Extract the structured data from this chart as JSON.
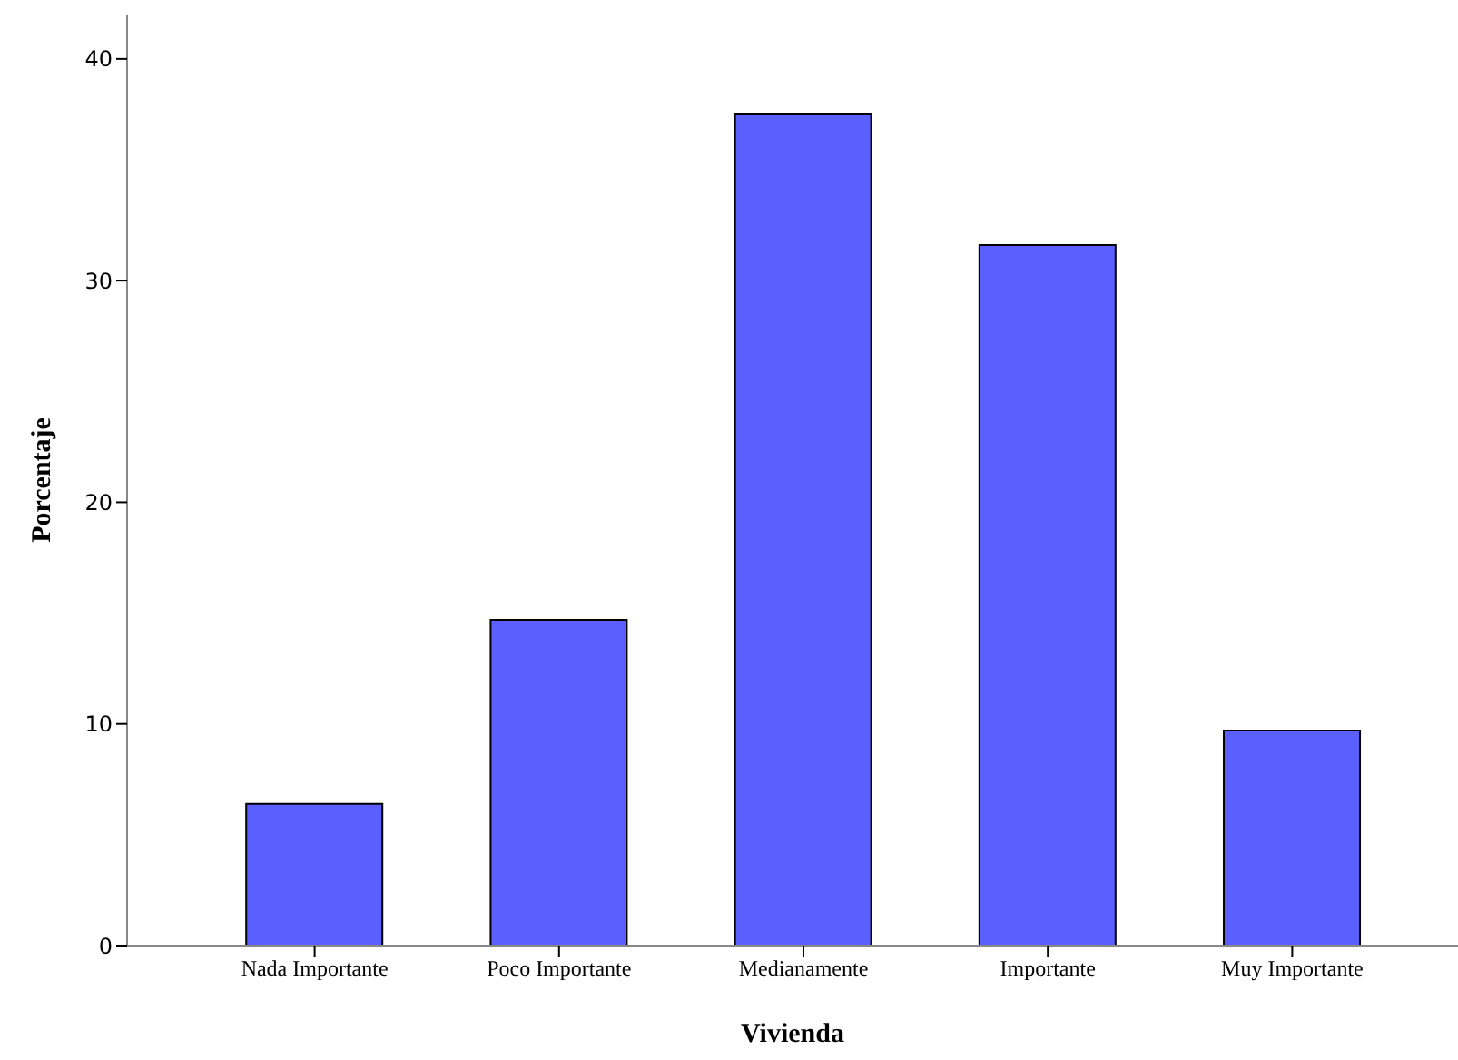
{
  "chart_data": {
    "type": "bar",
    "xlabel": "Vivienda",
    "ylabel": "Porcentaje",
    "categories": [
      "Nada Importante",
      "Poco Importante",
      "Medianamente",
      "Importante",
      "Muy Importante"
    ],
    "values": [
      6.4,
      14.7,
      37.5,
      31.6,
      9.7
    ],
    "color": "#5b5ffe",
    "ylim": [
      0,
      42
    ],
    "yticks": [
      0,
      10,
      20,
      30,
      40
    ],
    "grid": false,
    "legend": false
  }
}
